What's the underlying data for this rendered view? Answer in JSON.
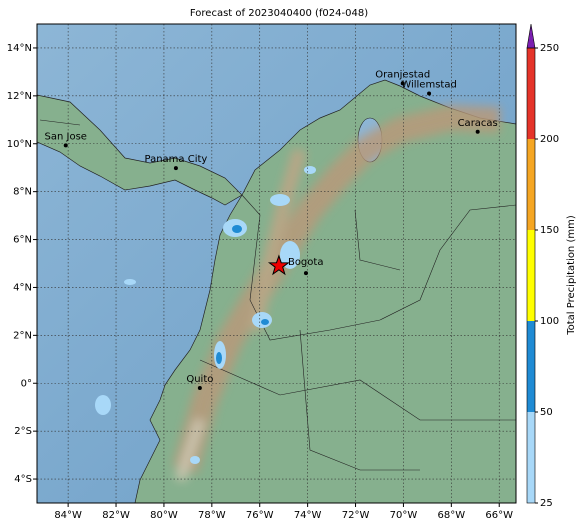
{
  "title": "Forecast of 2023040400 (f024-048)",
  "map": {
    "xlim": [
      -85.3,
      -65.3
    ],
    "ylim": [
      -5,
      15
    ],
    "xticks": [
      {
        "value": -84,
        "label": "84°W"
      },
      {
        "value": -82,
        "label": "82°W"
      },
      {
        "value": -80,
        "label": "80°W"
      },
      {
        "value": -78,
        "label": "78°W"
      },
      {
        "value": -76,
        "label": "76°W"
      },
      {
        "value": -74,
        "label": "74°W"
      },
      {
        "value": -72,
        "label": "72°W"
      },
      {
        "value": -70,
        "label": "70°W"
      },
      {
        "value": -68,
        "label": "68°W"
      },
      {
        "value": -66,
        "label": "66°W"
      }
    ],
    "yticks": [
      {
        "value": 14,
        "label": "14°N"
      },
      {
        "value": 12,
        "label": "12°N"
      },
      {
        "value": 10,
        "label": "10°N"
      },
      {
        "value": 8,
        "label": "8°N"
      },
      {
        "value": 6,
        "label": "6°N"
      },
      {
        "value": 4,
        "label": "4°N"
      },
      {
        "value": 2,
        "label": "2°N"
      },
      {
        "value": 0,
        "label": "0°"
      },
      {
        "value": -2,
        "label": "2°S"
      },
      {
        "value": -4,
        "label": "4°S"
      }
    ],
    "cities": [
      {
        "name": "San Jose",
        "lon": -84.1,
        "lat": 9.93
      },
      {
        "name": "Panama City",
        "lon": -79.5,
        "lat": 8.98
      },
      {
        "name": "Oranjestad",
        "lon": -70.03,
        "lat": 12.52
      },
      {
        "name": "Willemstad",
        "lon": -68.93,
        "lat": 12.1
      },
      {
        "name": "Caracas",
        "lon": -66.9,
        "lat": 10.5
      },
      {
        "name": "Bogota",
        "lon": -74.07,
        "lat": 4.6
      },
      {
        "name": "Quito",
        "lon": -78.5,
        "lat": -0.2
      }
    ],
    "marker": {
      "lon": -75.2,
      "lat": 4.9
    }
  },
  "colorbar": {
    "label": "Total Precipitation (mm)",
    "ticks": [
      25,
      50,
      100,
      150,
      200,
      250
    ],
    "colors": [
      "#a8d8f8",
      "#1f8bd4",
      "#ffff00",
      "#f5a623",
      "#e5342a"
    ],
    "extend_color": "#7b1fb0"
  }
}
